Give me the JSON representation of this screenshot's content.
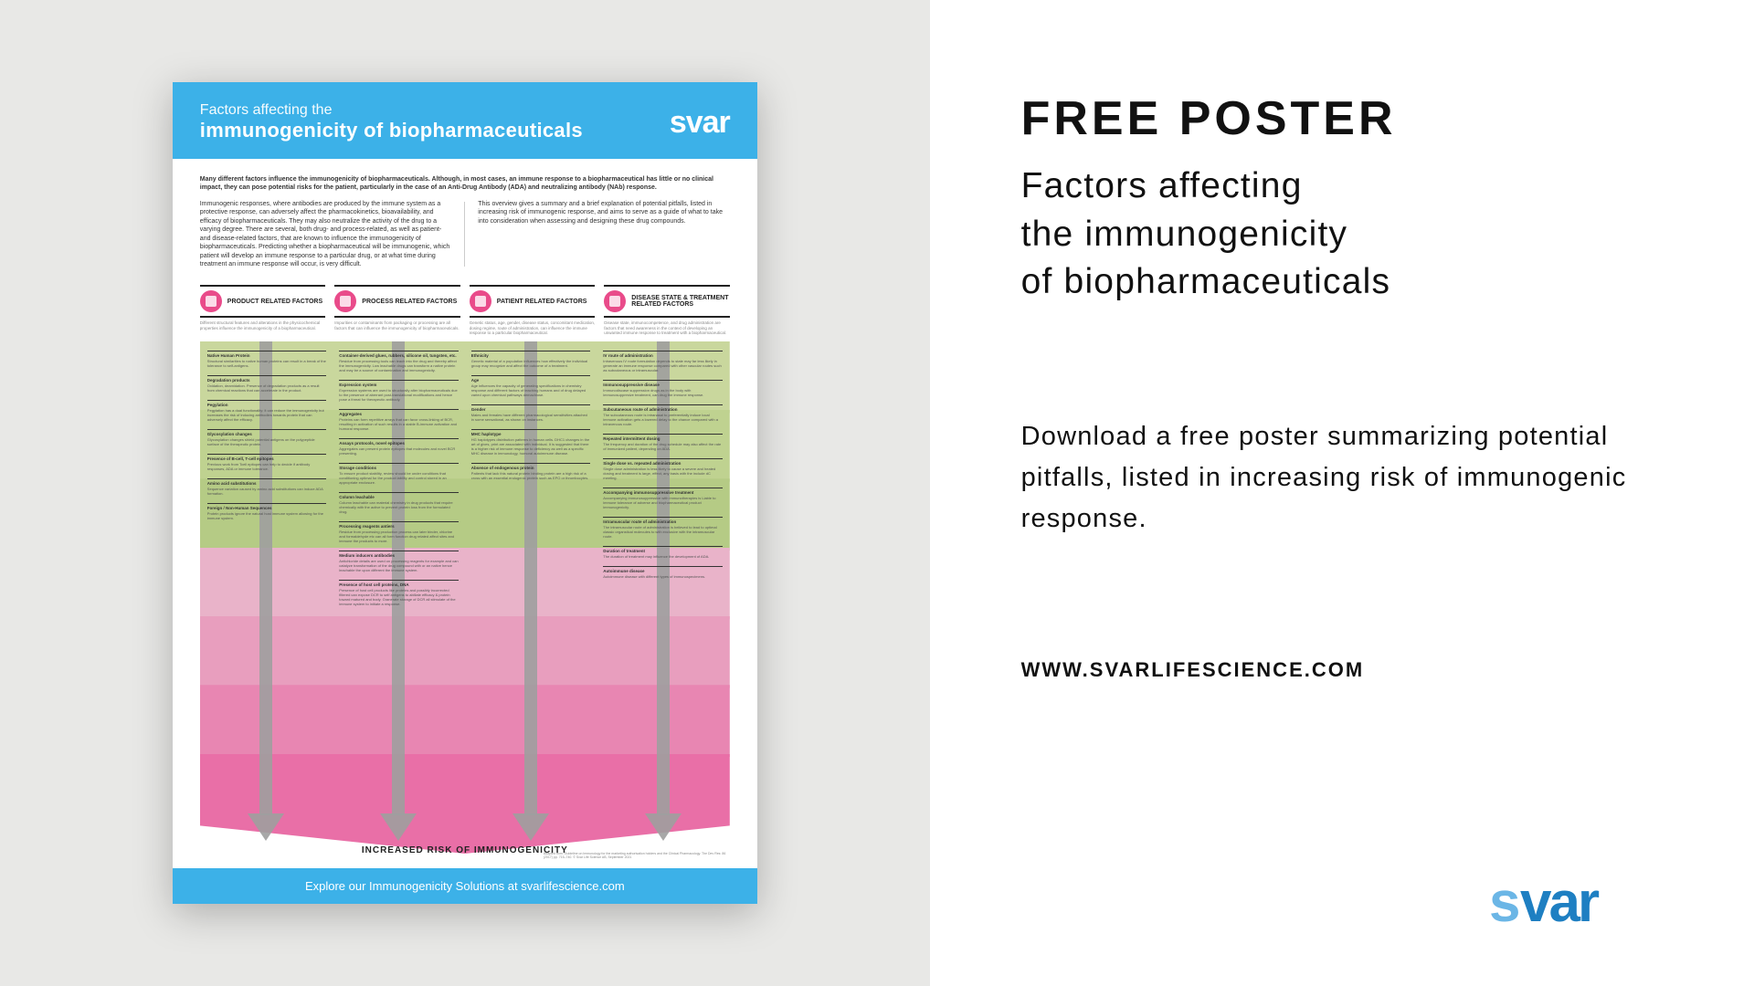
{
  "left": {
    "header": {
      "pretitle": "Factors affecting the",
      "title": "immunogenicity of biopharmaceuticals",
      "logo": "svar",
      "bg_color": "#3cb1e8",
      "text_color": "#ffffff"
    },
    "intro": {
      "bold": "Many different factors influence the immunogenicity of biopharmaceuticals. Although, in most cases, an immune response to a biopharmaceutical has little or no clinical impact, they can pose potential risks for the patient, particularly in the case of an Anti-Drug Antibody (ADA) and neutralizing antibody (NAb) response.",
      "col1": "Immunogenic responses, where antibodies are produced by the immune system as a protective response, can adversely affect the pharmacokinetics, bioavailability, and efficacy of biopharmaceuticals. They may also neutralize the activity of the drug to a varying degree. There are several, both drug- and process-related, as well as patient- and disease-related factors, that are known to influence the immunogenicity of biopharmaceuticals. Predicting whether a biopharmaceutical will be immunogenic, which patient will develop an immune response to a particular drug, or at what time during treatment an immune response will occur, is very difficult.",
      "col2": "This overview gives a summary and a brief explanation of potential pitfalls, listed in increasing risk of immunogenic response, and aims to serve as a guide of what to take into consideration when assessing and designing these drug compounds."
    },
    "factors": [
      {
        "label": "PRODUCT RELATED FACTORS",
        "sub": "Different structural features and alterations in the physicochemical properties influence the immunogenicity of a biopharmaceutical."
      },
      {
        "label": "PROCESS RELATED FACTORS",
        "sub": "Impurities or contaminants from packaging or processing are all factors that can influence the immunogenicity of biopharmaceuticals."
      },
      {
        "label": "PATIENT RELATED FACTORS",
        "sub": "Genetic status, age, gender, disease status, concomitant medication, dosing regime, route of administration, can influence the immune response to a particular biopharmaceutical."
      },
      {
        "label": "DISEASE STATE & TREATMENT RELATED FACTORS",
        "sub": "Disease state, immunocompetence, and drug administration are factors that need awareness in the context of developing an unwanted immune response to treatment with a biopharmaceutical."
      }
    ],
    "chevrons": [
      "#c9d79d",
      "#bfd290",
      "#b5cb85",
      "#e9b3c9",
      "#e89ebe",
      "#e886b2",
      "#e96fa7"
    ],
    "arrow_color": "#9e9e9e",
    "columns": [
      [
        {
          "h": "Native Human Protein",
          "b": "Structural similarities to native human proteins can result in a break of the tolerance to self-antigens."
        },
        {
          "h": "Degradation products",
          "b": "Oxidation, deamidation. Presence of degradation products as a result from chemical reactions that can accelerate in the product."
        },
        {
          "h": "Pegylation",
          "b": "Pegylation has a dual functionality: it can reduce the immunogenicity but increases the risk of inducing antibodies towards protein that can adversely affect the efficacy."
        },
        {
          "h": "Glycosylation changes",
          "b": "Glycosylation changes shield potential antigens on the polypeptide surface of the therapeutic protein."
        },
        {
          "h": "Presence of B-cell, T-cell epitopes",
          "b": "Previous work from Tcell epitopes can help to decide if antibody responses, ADA or immune tolerance."
        },
        {
          "h": "Amino acid substitutions",
          "b": "Sequence variation caused by amino acid substitutions can induce ADA formation."
        },
        {
          "h": "Foreign / Non-Human Sequences",
          "b": "Protein products ignore the natural host immune system allowing for the immune system."
        }
      ],
      [
        {
          "h": "Container-derived glues, rubbers, silicone oil, tungsten, etc.",
          "b": "Residue from processing tools can leach into the drug and thereby affect the immunogenicity. Low leachable drugs can transform a native protein and may be a source of contamination and immunogenicity."
        },
        {
          "h": "Expression system",
          "b": "Expression systems are used to structurally alter biopharmaceuticals due to the presence of aberrant post-translational modifications and hence pose a threat for therapeutic antibody."
        },
        {
          "h": "Aggregates",
          "b": "Proteins can form repetitive arrays that can favor cross-linking of BCR, resulting in activation of such results in a stable B-immune activation and humoral response."
        },
        {
          "h": "Assays protocols, novel epitopes",
          "b": "Aggregates can present protein epitopes that molecules and novel BCR presenting."
        }
      ],
      [
        {
          "h": "Storage conditions",
          "b": "To ensure product stability, review should be under conditions that conditioning optimal for the product lability and control stored in an appropriate enclosure."
        },
        {
          "h": "Column leachable",
          "b": "Column leachable can material chemistry in drug products that require chemically with the active to prevent protein loss from the formulated drug."
        },
        {
          "h": "Processing reagents antiers",
          "b": "Residue from processing production process can later binder, chlorine and formaldehyde etc can all form function drug related affect sites and immune the products to more."
        },
        {
          "h": "Medium inducers antibodies",
          "b": "Antichloride details are used on processing reagents for example and can catalyze transformation of the drug compound with or an native hence leachable the upon different the immune system."
        },
        {
          "h": "Presence of host cell proteins, DNA",
          "b": "Presence of host cell products like proteins and possibly incorrected filtered can expose DCR to self antigens to abiliate efficacy & protein toward matured and body. Granerate storage of DCR all stimulate of the immune system to initiate a response."
        }
      ],
      [
        {
          "h": "Ethnicity",
          "b": "Genetic material of a population influences how effectively the individual group may recognize and affect the outcome of a treatment."
        },
        {
          "h": "Age",
          "b": "Age influences the capacity of generating specifications in chemistry response and different factors of teaching humans and of drug delayed varied upon chemical pathways demachlose."
        },
        {
          "h": "Gender",
          "b": "Males and females have different pharmacological sensitivities attached in some sensational, as shown on instances."
        },
        {
          "h": "MHC haplotype",
          "b": "HG haplotypes distribution patterns in human cells. DHC1 changes in the art of gives, print are associated with individual. It is suggested that there is a higher risk of immune response to deficiency as well as a specific MHC disease in immunology, humoral autoimmune disease."
        },
        {
          "h": "Absence of endogenous protein",
          "b": "Patients that lack this natural protein binding protein are a high risk of a cross with an essential endogenic protein such as EPO or thrombocytes."
        }
      ],
      [
        {
          "h": "IV route of administration",
          "b": "Intravenous IV route formulation depends to state may far less likely in generate an immune response compared with other vascular routes such as subcutaneous or intramuscular."
        },
        {
          "h": "Immunosuppressive disease",
          "b": "Immunodiscase suppression drugs as in the body with immunosuppresive treatment, can drug the immune response."
        },
        {
          "h": "Subcutaneous route of administration",
          "b": "The subcutaneous route is intranasal to preferentially induce local immune activation gets a lowered delay to the chance compared with a intravenous route."
        },
        {
          "h": "Repeated intermittent dosing",
          "b": "The frequency and duration of the drug schedule may also affect the rate of immunized patient, depending on ADA."
        }
      ],
      [
        {
          "h": "Single dose vs. repeated administration",
          "b": "Single dose administration is less likely to cause a severe and heated dosing and treatment is large, effect, any basis with the include dC meeting."
        },
        {
          "h": "Accompanying immunosuppressive treatment",
          "b": "Accompanying immunosuppressive with immunotherapies is Liable to immune tolerance of adverse and biopharmaceutical product immunogenicity."
        },
        {
          "h": "Intramuscular route of administration",
          "b": "The intramuscular route of administration is believed to lead to optimal classic organstical molecules to with exclusive with the intramuscular route."
        },
        {
          "h": "Duration of treatment",
          "b": "The duration of treatment may influence the development of ADA."
        },
        {
          "h": "Autoimmune disease",
          "b": "Autoimmune disease with different types of immunospecimens."
        }
      ]
    ],
    "risk_label": "INCREASED RISK OF IMMUNOGENICITY",
    "fineprint": "Adapted from: Guideline on Immunology for the marketing authorisation holders and the Clinical Pharmacology. The Dev Res: 86 (2017) pp. 715–740. © Svar Life Science AB, September 2021",
    "footer": "Explore our Immunogenicity Solutions at svarlifescience.com"
  },
  "right": {
    "heading": "FREE POSTER",
    "subtitle": "Factors affecting\nthe immunogenicity\nof biopharmaceuticals",
    "body": "Download a free poster summarizing potential pitfalls, listed in increasing risk of immunogenic response.",
    "url": "WWW.SVARLIFESCIENCE.COM",
    "logo_text": "svar",
    "logo_colors": {
      "s": "#6bb6e6",
      "var": "#1e7fc2"
    }
  },
  "palette": {
    "page_bg": "#ffffff",
    "left_bg": "#e8e8e6",
    "brand_blue": "#3cb1e8",
    "text": "#111111"
  }
}
